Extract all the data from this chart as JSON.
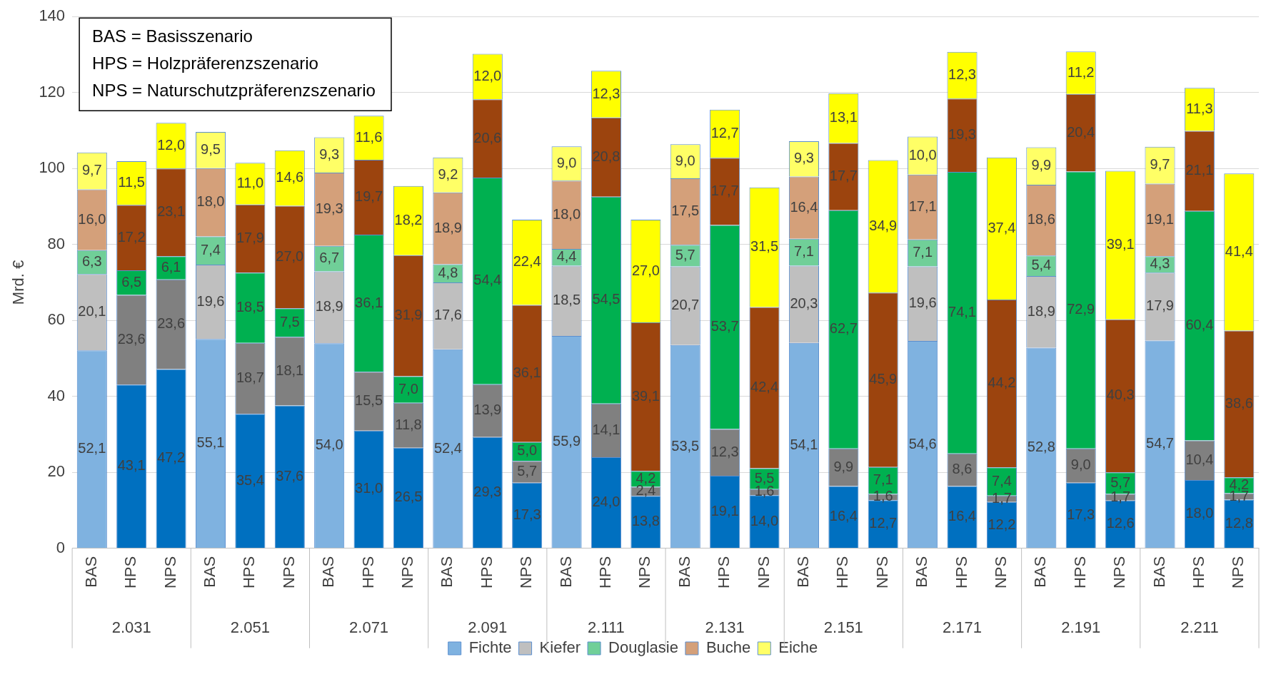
{
  "chart_data": {
    "type": "bar",
    "stacked": true,
    "ylabel": "Mrd. €",
    "categories": [
      "BAS",
      "HPS",
      "NPS",
      "BAS",
      "HPS",
      "NPS",
      "BAS",
      "HPS",
      "NPS",
      "BAS",
      "HPS",
      "NPS",
      "BAS",
      "HPS",
      "NPS",
      "BAS",
      "HPS",
      "NPS",
      "BAS",
      "HPS",
      "NPS",
      "BAS",
      "HPS",
      "NPS",
      "BAS",
      "HPS",
      "NPS",
      "BAS",
      "HPS",
      "NPS"
    ],
    "series": [
      {
        "name": "Fichte",
        "color": "#7fb2e0",
        "colors": [
          "#7fb2e0",
          "#0070c0",
          "#0070c0",
          "#7fb2e0",
          "#0070c0",
          "#0070c0",
          "#7fb2e0",
          "#0070c0",
          "#0070c0",
          "#7fb2e0",
          "#0070c0",
          "#0070c0",
          "#7fb2e0",
          "#0070c0",
          "#0070c0",
          "#7fb2e0",
          "#0070c0",
          "#0070c0",
          "#7fb2e0",
          "#0070c0",
          "#0070c0",
          "#7fb2e0",
          "#0070c0",
          "#0070c0",
          "#7fb2e0",
          "#0070c0",
          "#0070c0",
          "#7fb2e0",
          "#0070c0",
          "#0070c0"
        ],
        "values": [
          52.1,
          43.1,
          47.2,
          55.1,
          35.4,
          37.6,
          54.0,
          31.0,
          26.5,
          52.4,
          29.3,
          17.3,
          55.9,
          24.0,
          13.8,
          53.5,
          19.1,
          14.0,
          54.1,
          16.4,
          12.7,
          54.6,
          16.4,
          12.2,
          52.8,
          17.3,
          12.6,
          54.7,
          18.0,
          12.8
        ],
        "value_labels": [
          "52,1",
          "43,1",
          "47,2",
          "55,1",
          "35,4",
          "37,6",
          "54,0",
          "31,0",
          "26,5",
          "52,4",
          "29,3",
          "17,3",
          "55,9",
          "24,0",
          "13,8",
          "53,5",
          "19,1",
          "14,0",
          "54,1",
          "16,4",
          "12,7",
          "54,6",
          "16,4",
          "12,2",
          "52,8",
          "17,3",
          "12,6",
          "54,7",
          "18,0",
          "12,8"
        ]
      },
      {
        "name": "Kiefer",
        "color": "#bfbfbf",
        "colors": [
          "#bfbfbf",
          "#808080",
          "#808080",
          "#bfbfbf",
          "#808080",
          "#808080",
          "#bfbfbf",
          "#808080",
          "#808080",
          "#bfbfbf",
          "#808080",
          "#808080",
          "#bfbfbf",
          "#808080",
          "#808080",
          "#bfbfbf",
          "#808080",
          "#808080",
          "#bfbfbf",
          "#808080",
          "#808080",
          "#bfbfbf",
          "#808080",
          "#808080",
          "#bfbfbf",
          "#808080",
          "#808080",
          "#bfbfbf",
          "#808080",
          "#808080"
        ],
        "values": [
          20.1,
          23.6,
          23.6,
          19.6,
          18.7,
          18.1,
          18.9,
          15.5,
          11.8,
          17.6,
          13.9,
          5.7,
          18.5,
          14.1,
          2.4,
          20.7,
          12.3,
          1.6,
          20.3,
          9.9,
          1.6,
          19.6,
          8.6,
          1.7,
          18.9,
          9.0,
          1.7,
          17.9,
          10.4,
          1.7
        ],
        "value_labels": [
          "20,1",
          "23,6",
          "23,6",
          "19,6",
          "18,7",
          "18,1",
          "18,9",
          "15,5",
          "11,8",
          "17,6",
          "13,9",
          "5,7",
          "18,5",
          "14,1",
          "2,4",
          "20,7",
          "12,3",
          "1,6",
          "20,3",
          "9,9",
          "1,6",
          "19,6",
          "8,6",
          "1,7",
          "18,9",
          "9,0",
          "1,7",
          "17,9",
          "10,4",
          "1,7"
        ]
      },
      {
        "name": "Douglasie",
        "color": "#70cf98",
        "colors": [
          "#70cf98",
          "#00b050",
          "#00b050",
          "#70cf98",
          "#00b050",
          "#00b050",
          "#70cf98",
          "#00b050",
          "#00b050",
          "#70cf98",
          "#00b050",
          "#00b050",
          "#70cf98",
          "#00b050",
          "#00b050",
          "#70cf98",
          "#00b050",
          "#00b050",
          "#70cf98",
          "#00b050",
          "#00b050",
          "#70cf98",
          "#00b050",
          "#00b050",
          "#70cf98",
          "#00b050",
          "#00b050",
          "#70cf98",
          "#00b050",
          "#00b050"
        ],
        "values": [
          6.3,
          6.5,
          6.1,
          7.4,
          18.5,
          7.5,
          6.7,
          36.1,
          7.0,
          4.8,
          54.4,
          5.0,
          4.4,
          54.5,
          4.2,
          5.7,
          53.7,
          5.5,
          7.1,
          62.7,
          7.1,
          7.1,
          74.1,
          7.4,
          5.4,
          72.9,
          5.7,
          4.3,
          60.4,
          4.2
        ],
        "value_labels": [
          "6,3",
          "6,5",
          "6,1",
          "7,4",
          "18,5",
          "7,5",
          "6,7",
          "36,1",
          "7,0",
          "4,8",
          "54,4",
          "5,0",
          "4,4",
          "54,5",
          "4,2",
          "5,7",
          "53,7",
          "5,5",
          "7,1",
          "62,7",
          "7,1",
          "7,1",
          "74,1",
          "7,4",
          "5,4",
          "72,9",
          "5,7",
          "4,3",
          "60,4",
          "4,2"
        ]
      },
      {
        "name": "Buche",
        "color": "#d4a07a",
        "colors": [
          "#d4a07a",
          "#9c440e",
          "#9c440e",
          "#d4a07a",
          "#9c440e",
          "#9c440e",
          "#d4a07a",
          "#9c440e",
          "#9c440e",
          "#d4a07a",
          "#9c440e",
          "#9c440e",
          "#d4a07a",
          "#9c440e",
          "#9c440e",
          "#d4a07a",
          "#9c440e",
          "#9c440e",
          "#d4a07a",
          "#9c440e",
          "#9c440e",
          "#d4a07a",
          "#9c440e",
          "#9c440e",
          "#d4a07a",
          "#9c440e",
          "#9c440e",
          "#d4a07a",
          "#9c440e",
          "#9c440e"
        ],
        "values": [
          16.0,
          17.2,
          23.1,
          18.0,
          17.9,
          27.0,
          19.3,
          19.7,
          31.9,
          18.9,
          20.6,
          36.1,
          18.0,
          20.8,
          39.1,
          17.5,
          17.7,
          42.4,
          16.4,
          17.7,
          45.9,
          17.1,
          19.3,
          44.2,
          18.6,
          20.4,
          40.3,
          19.1,
          21.1,
          38.6
        ],
        "value_labels": [
          "16,0",
          "17,2",
          "23,1",
          "18,0",
          "17,9",
          "27,0",
          "19,3",
          "19,7",
          "31,9",
          "18,9",
          "20,6",
          "36,1",
          "18,0",
          "20,8",
          "39,1",
          "17,5",
          "17,7",
          "42,4",
          "16,4",
          "17,7",
          "45,9",
          "17,1",
          "19,3",
          "44,2",
          "18,6",
          "20,4",
          "40,3",
          "19,1",
          "21,1",
          "38,6"
        ]
      },
      {
        "name": "Eiche",
        "color": "#ffff66",
        "colors": [
          "#ffff66",
          "#ffff00",
          "#ffff00",
          "#ffff66",
          "#ffff00",
          "#ffff00",
          "#ffff66",
          "#ffff00",
          "#ffff00",
          "#ffff66",
          "#ffff00",
          "#ffff00",
          "#ffff66",
          "#ffff00",
          "#ffff00",
          "#ffff66",
          "#ffff00",
          "#ffff00",
          "#ffff66",
          "#ffff00",
          "#ffff00",
          "#ffff66",
          "#ffff00",
          "#ffff00",
          "#ffff66",
          "#ffff00",
          "#ffff00",
          "#ffff66",
          "#ffff00",
          "#ffff00"
        ],
        "values": [
          9.7,
          11.5,
          12.0,
          9.5,
          11.0,
          14.6,
          9.3,
          11.6,
          18.2,
          9.2,
          12.0,
          22.4,
          9.0,
          12.3,
          27.0,
          9.0,
          12.7,
          31.5,
          9.3,
          13.1,
          34.9,
          10.0,
          12.3,
          37.4,
          9.9,
          11.2,
          39.1,
          9.7,
          11.3,
          41.4
        ],
        "value_labels": [
          "9,7",
          "11,5",
          "12,0",
          "9,5",
          "11,0",
          "14,6",
          "9,3",
          "11,6",
          "18,2",
          "9,2",
          "12,0",
          "22,4",
          "9,0",
          "12,3",
          "27,0",
          "9,0",
          "12,7",
          "31,5",
          "9,3",
          "13,1",
          "34,9",
          "10,0",
          "12,3",
          "37,4",
          "9,9",
          "11,2",
          "39,1",
          "9,7",
          "11,3",
          "41,4"
        ]
      }
    ],
    "ylim": [
      0,
      140
    ],
    "yticks": [
      0,
      20,
      40,
      60,
      80,
      100,
      120,
      140
    ],
    "grid": "y",
    "legend": "bottom",
    "annotations": [
      "BAS = Basisszenario",
      "HPS = Holzpräferenzszenario",
      "NPS = Naturschutzpräferenzszenario",
      "2.031",
      "2.051",
      "2.071",
      "2.091",
      "2.111",
      "2.131",
      "2.151",
      "2.171",
      "2.191",
      "2.211"
    ]
  }
}
